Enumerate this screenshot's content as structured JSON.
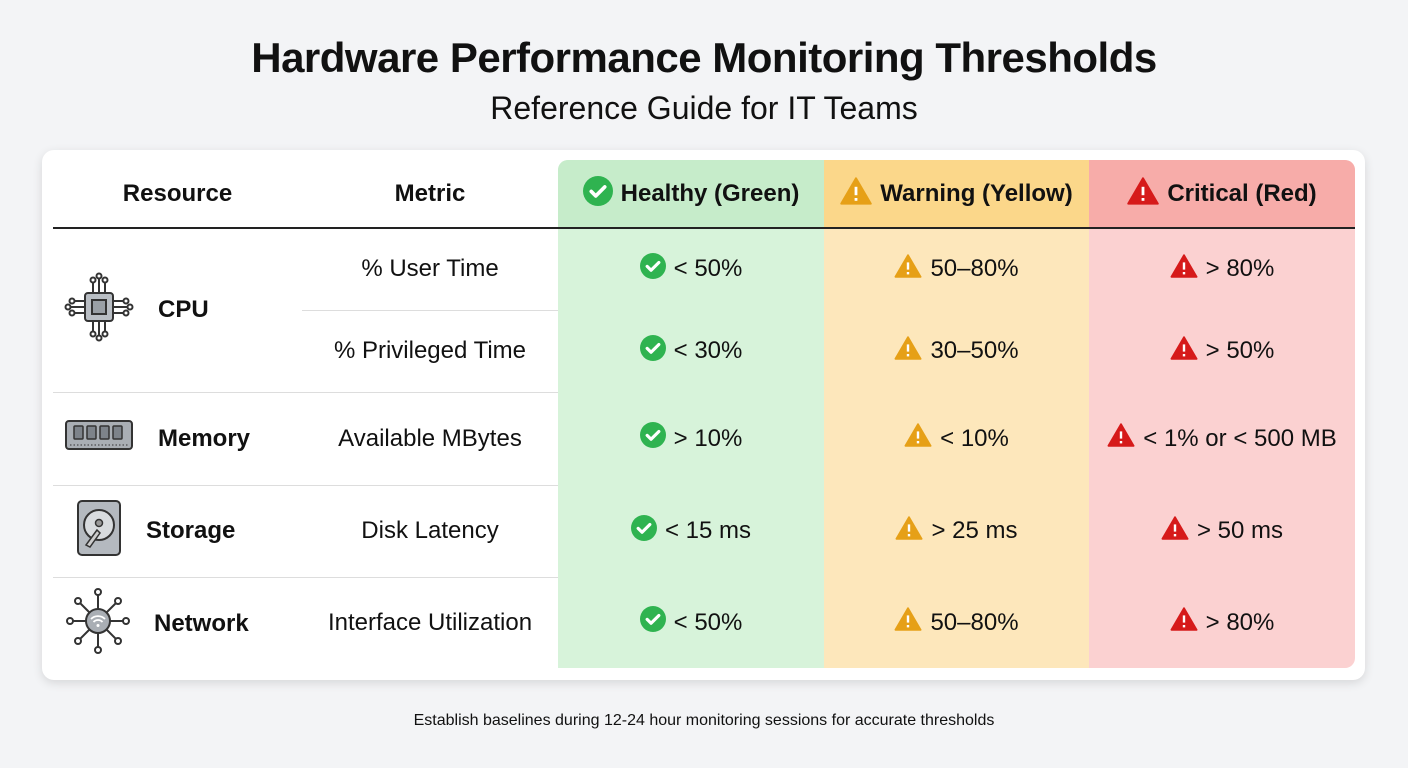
{
  "header": {
    "title": "Hardware Performance Monitoring Thresholds",
    "subtitle": "Reference Guide for IT Teams"
  },
  "table": {
    "columns": [
      "Resource",
      "Metric",
      "Healthy (Green)",
      "Warning (Yellow)",
      "Critical (Red)"
    ],
    "column_icons": [
      "check-circle-icon",
      "warning-triangle-icon",
      "warning-triangle-icon"
    ],
    "colors": {
      "healthy": "#2fb350",
      "warning": "#e6a017",
      "critical": "#d61a1a"
    },
    "rows": [
      {
        "resource": "CPU",
        "icon": "cpu-chip-icon",
        "metric": "% User Time",
        "healthy": "< 50%",
        "warning": "50–80%",
        "critical": "> 80%"
      },
      {
        "resource": "CPU",
        "icon": "cpu-chip-icon",
        "metric": "% Privileged Time",
        "healthy": "< 30%",
        "warning": "30–50%",
        "critical": "> 50%"
      },
      {
        "resource": "Memory",
        "icon": "ram-module-icon",
        "metric": "Available MBytes",
        "healthy": "> 10%",
        "warning": "< 10%",
        "critical": "< 1% or < 500 MB"
      },
      {
        "resource": "Storage",
        "icon": "hard-drive-icon",
        "metric": "Disk Latency",
        "healthy": "< 15 ms",
        "warning": "> 25 ms",
        "critical": "> 50 ms"
      },
      {
        "resource": "Network",
        "icon": "network-hub-icon",
        "metric": "Interface Utilization",
        "healthy": "< 50%",
        "warning": "50–80%",
        "critical": "> 80%"
      }
    ]
  },
  "footer": {
    "note": "Establish baselines during 12-24 hour monitoring sessions for accurate thresholds"
  }
}
